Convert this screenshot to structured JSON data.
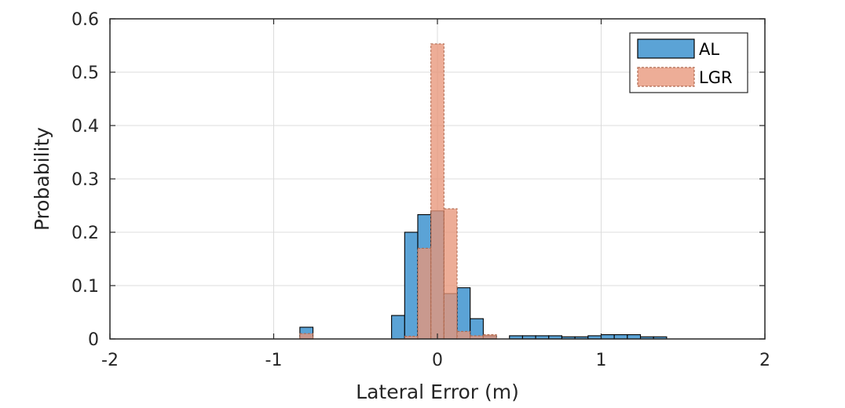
{
  "chart_data": {
    "type": "bar",
    "xlabel": "Lateral Error (m)",
    "ylabel": "Probability",
    "xlim": [
      -2,
      2
    ],
    "ylim": [
      0,
      0.6
    ],
    "x_ticks": [
      "-2",
      "-1",
      "0",
      "1",
      "2"
    ],
    "y_ticks": [
      "0",
      "0.1",
      "0.2",
      "0.3",
      "0.4",
      "0.5",
      "0.6"
    ],
    "grid": true,
    "legend_position": "top-right",
    "bin_width": 0.08,
    "series": [
      {
        "name": "AL",
        "color": "#5ba3d6",
        "edge_color": "#000000",
        "bins": [
          {
            "x0": -0.84,
            "value": 0.022
          },
          {
            "x0": -0.28,
            "value": 0.044
          },
          {
            "x0": -0.2,
            "value": 0.2
          },
          {
            "x0": -0.12,
            "value": 0.233
          },
          {
            "x0": -0.04,
            "value": 0.24
          },
          {
            "x0": 0.04,
            "value": 0.085
          },
          {
            "x0": 0.12,
            "value": 0.096
          },
          {
            "x0": 0.2,
            "value": 0.038
          },
          {
            "x0": 0.28,
            "value": 0.006
          },
          {
            "x0": 0.44,
            "value": 0.006
          },
          {
            "x0": 0.52,
            "value": 0.006
          },
          {
            "x0": 0.6,
            "value": 0.006
          },
          {
            "x0": 0.68,
            "value": 0.006
          },
          {
            "x0": 0.76,
            "value": 0.004
          },
          {
            "x0": 0.84,
            "value": 0.004
          },
          {
            "x0": 0.92,
            "value": 0.006
          },
          {
            "x0": 1.0,
            "value": 0.008
          },
          {
            "x0": 1.08,
            "value": 0.008
          },
          {
            "x0": 1.16,
            "value": 0.008
          },
          {
            "x0": 1.24,
            "value": 0.004
          },
          {
            "x0": 1.32,
            "value": 0.004
          }
        ]
      },
      {
        "name": "LGR",
        "color": "#e8967a",
        "edge_color": "#b06a50",
        "bins": [
          {
            "x0": -0.84,
            "value": 0.01
          },
          {
            "x0": -0.2,
            "value": 0.005
          },
          {
            "x0": -0.12,
            "value": 0.17
          },
          {
            "x0": -0.04,
            "value": 0.553
          },
          {
            "x0": 0.04,
            "value": 0.244
          },
          {
            "x0": 0.12,
            "value": 0.014
          },
          {
            "x0": 0.2,
            "value": 0.006
          },
          {
            "x0": 0.28,
            "value": 0.008
          }
        ]
      }
    ]
  }
}
